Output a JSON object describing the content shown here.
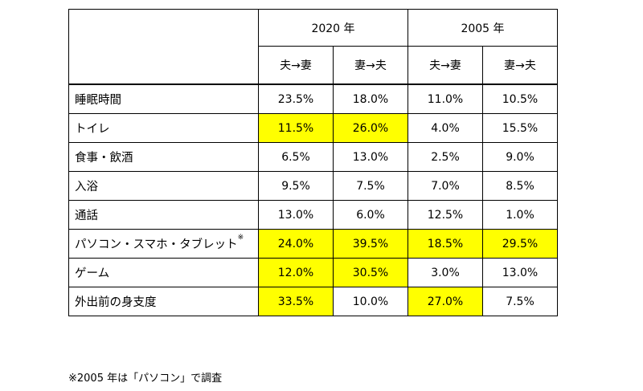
{
  "table": {
    "years": [
      "2020 年",
      "2005 年"
    ],
    "directions": [
      "夫→妻",
      "妻→夫",
      "夫→妻",
      "妻→夫"
    ],
    "highlight_color": "#ffff00",
    "rows": [
      {
        "label": "睡眠時間",
        "note": "",
        "values": [
          "23.5%",
          "18.0%",
          "11.0%",
          "10.5%"
        ],
        "highlight": [
          false,
          false,
          false,
          false
        ]
      },
      {
        "label": "トイレ",
        "note": "",
        "values": [
          "11.5%",
          "26.0%",
          "4.0%",
          "15.5%"
        ],
        "highlight": [
          true,
          true,
          false,
          false
        ]
      },
      {
        "label": "食事・飲酒",
        "note": "",
        "values": [
          "6.5%",
          "13.0%",
          "2.5%",
          "9.0%"
        ],
        "highlight": [
          false,
          false,
          false,
          false
        ]
      },
      {
        "label": "入浴",
        "note": "",
        "values": [
          "9.5%",
          "7.5%",
          "7.0%",
          "8.5%"
        ],
        "highlight": [
          false,
          false,
          false,
          false
        ]
      },
      {
        "label": "通話",
        "note": "",
        "values": [
          "13.0%",
          "6.0%",
          "12.5%",
          "1.0%"
        ],
        "highlight": [
          false,
          false,
          false,
          false
        ]
      },
      {
        "label": "パソコン・スマホ・タブレット",
        "note": "※",
        "values": [
          "24.0%",
          "39.5%",
          "18.5%",
          "29.5%"
        ],
        "highlight": [
          true,
          true,
          true,
          true
        ]
      },
      {
        "label": "ゲーム",
        "note": "",
        "values": [
          "12.0%",
          "30.5%",
          "3.0%",
          "13.0%"
        ],
        "highlight": [
          true,
          true,
          false,
          false
        ]
      },
      {
        "label": "外出前の身支度",
        "note": "",
        "values": [
          "33.5%",
          "10.0%",
          "27.0%",
          "7.5%"
        ],
        "highlight": [
          true,
          false,
          true,
          false
        ]
      }
    ]
  },
  "footnote": "※2005 年は「パソコン」で調査"
}
